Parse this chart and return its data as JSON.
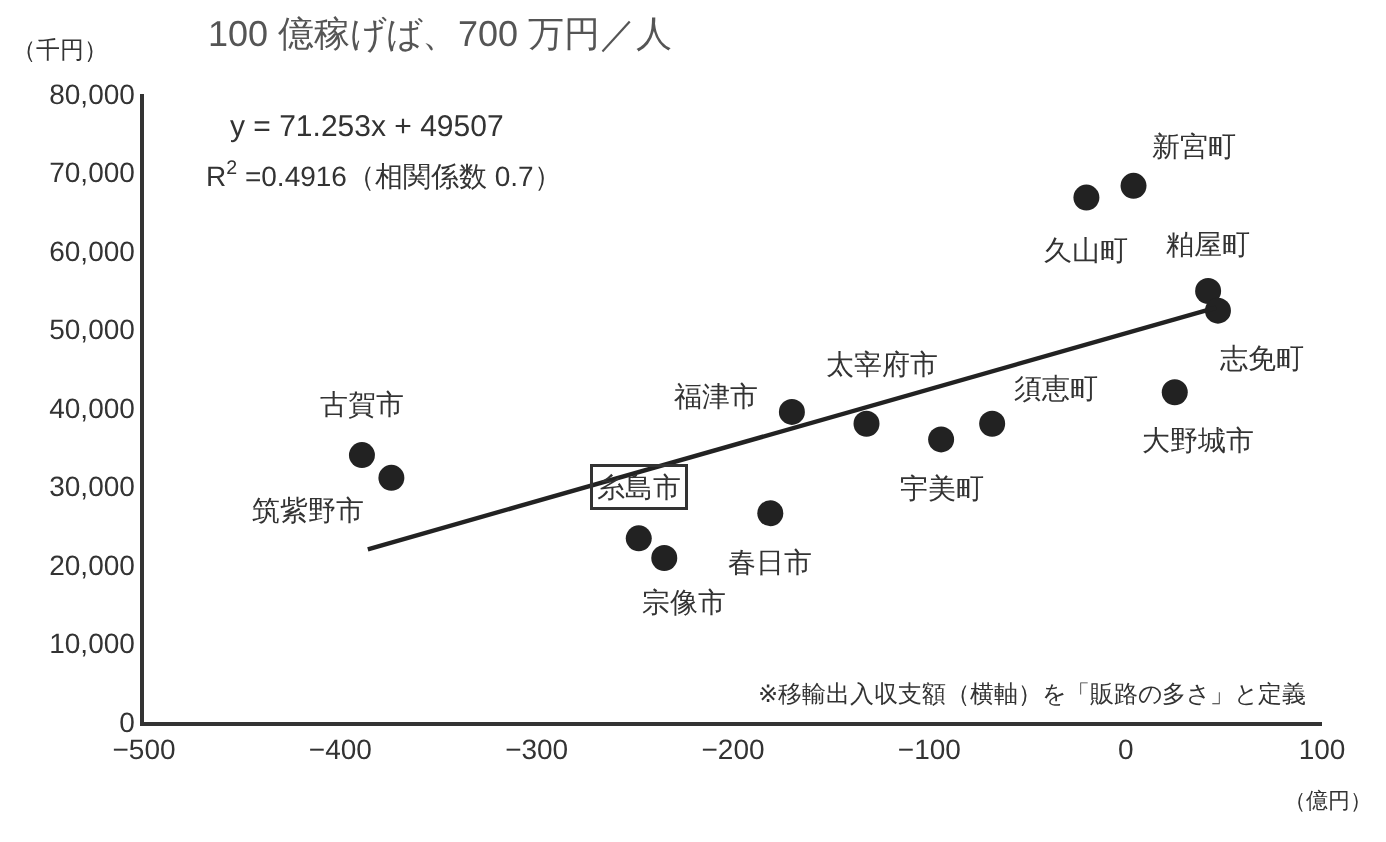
{
  "chart_data": {
    "type": "scatter",
    "title": "100 億稼げば、700 万円／人",
    "xlabel": "（億円）",
    "ylabel": "（千円）",
    "x": [
      -389,
      -374,
      -248,
      -235,
      -181,
      -170,
      -132,
      -94,
      -68,
      -20,
      4,
      42,
      47,
      25
    ],
    "series": [
      {
        "color": "#222222",
        "values": [
          34000,
          31100,
          23400,
          20900,
          26600,
          39500,
          38000,
          36000,
          38000,
          66800,
          68300,
          54900,
          52400,
          42000
        ]
      },
      {
        "type": "line",
        "color": "#222222",
        "marker": "none",
        "x": [
          -386,
          46
        ],
        "values": [
          22000,
          52800
        ]
      }
    ],
    "marker": "circle",
    "xlim": [
      -500,
      100
    ],
    "ylim": [
      0,
      80000
    ],
    "xticks": [
      {
        "value": -500,
        "label": "−500"
      },
      {
        "value": -400,
        "label": "−400"
      },
      {
        "value": -300,
        "label": "−300"
      },
      {
        "value": -200,
        "label": "−200"
      },
      {
        "value": -100,
        "label": "−100"
      },
      0,
      100
    ],
    "yticks": [
      0,
      {
        "value": 10000,
        "label": "10,000"
      },
      {
        "value": 20000,
        "label": "20,000"
      },
      {
        "value": 30000,
        "label": "30,000"
      },
      {
        "value": 40000,
        "label": "40,000"
      },
      {
        "value": 50000,
        "label": "50,000"
      },
      {
        "value": 60000,
        "label": "60,000"
      },
      {
        "value": 70000,
        "label": "70,000"
      },
      {
        "value": 80000,
        "label": "80,000"
      }
    ],
    "annotations": [
      "y = 71.253x + 49507",
      "R$^{2}$ =0.4916（相関係数 0.7）",
      "※移輸出入収支額（横軸）を「販路の多さ」と定義",
      {
        "text": "古賀市",
        "x": -389,
        "y": 34000
      },
      {
        "text": "筑紫野市",
        "x": -374,
        "y": 31100
      },
      {
        "text": "糸島市",
        "x": -248,
        "y": 23400
      },
      {
        "text": "宗像市",
        "x": -235,
        "y": 20900
      },
      {
        "text": "春日市",
        "x": -181,
        "y": 26600
      },
      {
        "text": "福津市",
        "x": -170,
        "y": 39500
      },
      {
        "text": "太宰府市",
        "x": -132,
        "y": 38000
      },
      {
        "text": "宇美町",
        "x": -94,
        "y": 36000
      },
      {
        "text": "須恵町",
        "x": -68,
        "y": 38000
      },
      {
        "text": "久山町",
        "x": -20,
        "y": 66800
      },
      {
        "text": "新宮町",
        "x": 4,
        "y": 68300
      },
      {
        "text": "粕屋町",
        "x": 42,
        "y": 54900
      },
      {
        "text": "志免町",
        "x": 47,
        "y": 52400
      },
      {
        "text": "大野城市",
        "x": 25,
        "y": 42000
      }
    ]
  }
}
